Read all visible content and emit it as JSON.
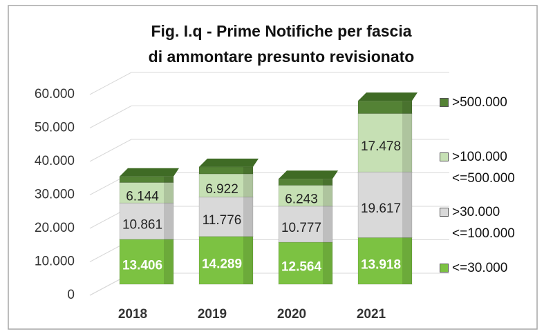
{
  "chart_data": {
    "type": "bar",
    "title_lines": [
      "Fig. I.q - Prime Notifiche per fascia",
      "di ammontare presunto revisionato"
    ],
    "categories": [
      "2018",
      "2019",
      "2020",
      "2021"
    ],
    "series": [
      {
        "name": "<=30.000",
        "color": "#7cc242",
        "label_color": "#ffffff",
        "values": [
          13406,
          14289,
          12564,
          13918
        ],
        "value_labels": [
          "13.406",
          "14.289",
          "12.564",
          "13.918"
        ]
      },
      {
        "name": ">30.000 <=100.000",
        "color": "#d9d9d9",
        "label_color": "#222222",
        "values": [
          10861,
          11776,
          10777,
          19617
        ],
        "value_labels": [
          "10.861",
          "11.776",
          "10.777",
          "19.617"
        ]
      },
      {
        "name": ">100.000 <=500.000",
        "color": "#c6e0b4",
        "label_color": "#222222",
        "values": [
          6144,
          6922,
          6243,
          17478
        ],
        "value_labels": [
          "6.144",
          "6.922",
          "6.243",
          "17.478"
        ]
      },
      {
        "name": ">500.000",
        "color": "#548235",
        "values": [
          1800,
          2100,
          1900,
          3800
        ]
      }
    ],
    "ylim": [
      0,
      60000
    ],
    "yticks": [
      0,
      {
        "value": 10000,
        "label": "10.000"
      },
      {
        "value": 20000,
        "label": "20.000"
      },
      {
        "value": 30000,
        "label": "30.000"
      },
      {
        "value": 40000,
        "label": "40.000"
      },
      {
        "value": 50000,
        "label": "50.000"
      },
      {
        "value": 60000,
        "label": "60.000"
      }
    ],
    "grid": true
  }
}
